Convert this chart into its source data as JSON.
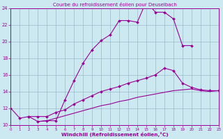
{
  "title": "Courbe du refroidissement éolien pour Deuselbach",
  "xlabel": "Windchill (Refroidissement éolien,°C)",
  "bg_color": "#cce8f0",
  "grid_color": "#99bbcc",
  "line_color": "#990099",
  "xmin": 0,
  "xmax": 23,
  "ymin": 10,
  "ymax": 24,
  "yticks": [
    10,
    12,
    14,
    16,
    18,
    20,
    22,
    24
  ],
  "curve1_x": [
    0,
    1,
    2,
    3,
    4,
    5,
    6,
    7,
    8,
    9,
    10,
    11,
    12,
    13,
    14,
    15,
    16,
    17,
    18,
    19,
    20
  ],
  "curve1_y": [
    12.0,
    10.8,
    11.0,
    10.4,
    10.5,
    10.5,
    13.0,
    15.3,
    17.4,
    19.0,
    20.1,
    20.8,
    22.5,
    22.5,
    22.3,
    24.8,
    23.5,
    23.5,
    22.7,
    19.5,
    19.5
  ],
  "curve1_markers": true,
  "curve2_x": [
    2,
    3,
    4,
    5,
    6,
    7,
    8,
    9,
    10,
    11,
    12,
    13,
    14,
    15,
    16,
    17,
    18,
    19,
    20,
    21,
    22,
    23
  ],
  "curve2_y": [
    11.0,
    11.0,
    11.0,
    11.5,
    11.8,
    12.5,
    13.0,
    13.5,
    14.0,
    14.3,
    14.6,
    15.0,
    15.3,
    15.6,
    16.0,
    16.8,
    16.5,
    15.0,
    14.5,
    14.2,
    14.1,
    14.1
  ],
  "curve2_markers": true,
  "curve3_x": [
    3,
    4,
    5,
    6,
    7,
    8,
    9,
    10,
    11,
    12,
    13,
    14,
    15,
    16,
    17,
    18,
    19,
    20,
    21,
    22,
    23
  ],
  "curve3_y": [
    10.4,
    10.5,
    10.8,
    11.1,
    11.4,
    11.7,
    12.0,
    12.3,
    12.5,
    12.8,
    13.0,
    13.3,
    13.5,
    13.7,
    13.9,
    14.1,
    14.2,
    14.3,
    14.1,
    14.0,
    14.1
  ],
  "curve3_markers": false
}
